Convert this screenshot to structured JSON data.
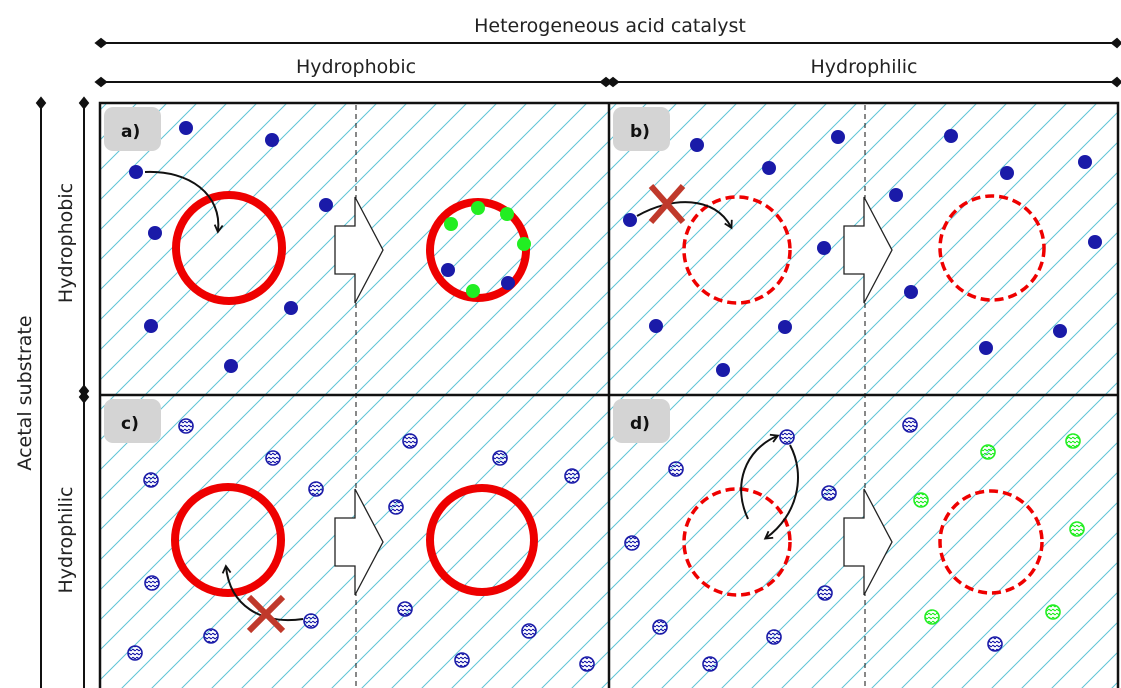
{
  "headers": {
    "top": "Heterogeneous acid catalyst",
    "col_hydrophobic": "Hydrophobic",
    "col_hydrophilic": "Hydrophilic",
    "left": "Acetal substrate",
    "row_hydrophobic": "Hydrophobic",
    "row_hydrophilic": "Hydrophilic"
  },
  "panels": [
    {
      "id": "a",
      "label": "a)"
    },
    {
      "id": "b",
      "label": "b)"
    },
    {
      "id": "c",
      "label": "c)"
    },
    {
      "id": "d",
      "label": "d)"
    }
  ],
  "colors": {
    "hatch": "#5ec4d6",
    "catalyst": "#ee0000",
    "substrate": "#1a1aa8",
    "product": "#22ee22",
    "block": "#c0392b",
    "label_bg": "#d4d4d4"
  },
  "icons": [
    "hydrophobic-particle",
    "hydrophilic-particle",
    "product-particle",
    "blocked-cross-icon",
    "curved-arrow-icon",
    "block-arrow-icon"
  ]
}
